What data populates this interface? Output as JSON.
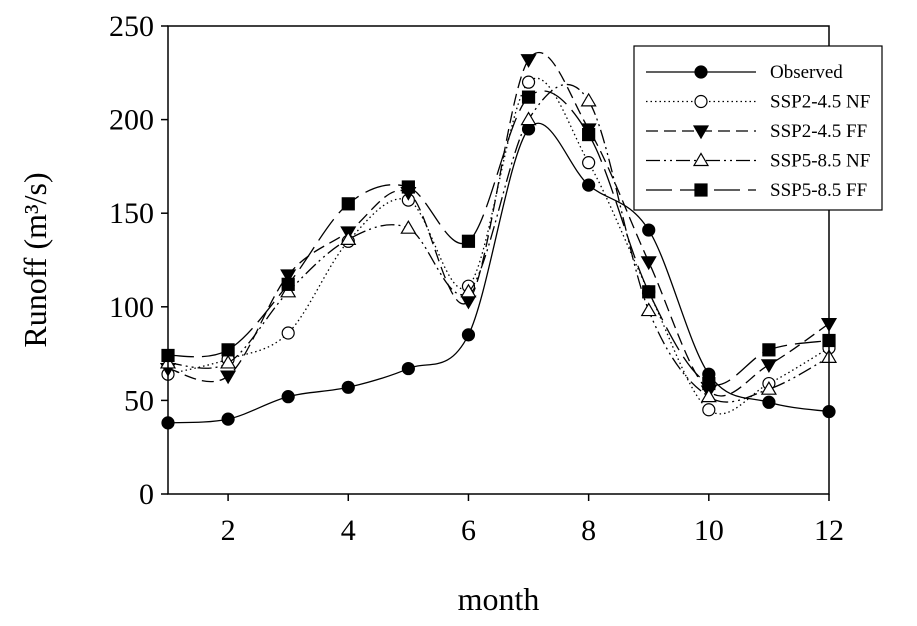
{
  "chart_data": {
    "type": "line",
    "xlabel": "month",
    "ylabel": "Runoff (m³/s)",
    "x": [
      1,
      2,
      3,
      4,
      5,
      6,
      7,
      8,
      9,
      10,
      11,
      12
    ],
    "xlim": [
      1,
      12
    ],
    "ylim": [
      0,
      250
    ],
    "xticks": [
      2,
      4,
      6,
      8,
      10,
      12
    ],
    "yticks": [
      0,
      50,
      100,
      150,
      200,
      250
    ],
    "grid": false,
    "legend_position": "top-right",
    "series": [
      {
        "name": "Observed",
        "marker": "filled-circle",
        "dash": "solid",
        "values": [
          38,
          40,
          52,
          57,
          67,
          85,
          195,
          165,
          141,
          64,
          49,
          44
        ]
      },
      {
        "name": "SSP2-4.5 NF",
        "marker": "open-circle",
        "dash": "dotted",
        "values": [
          64,
          72,
          86,
          135,
          157,
          111,
          220,
          177,
          108,
          45,
          59,
          78
        ]
      },
      {
        "name": "SSP2-4.5 FF",
        "marker": "filled-triangle-down",
        "dash": "dashed",
        "values": [
          67,
          63,
          117,
          140,
          161,
          103,
          232,
          195,
          124,
          55,
          69,
          91
        ]
      },
      {
        "name": "SSP5-8.5 NF",
        "marker": "open-triangle-up",
        "dash": "dash-dot-dot",
        "values": [
          70,
          70,
          108,
          136,
          142,
          108,
          200,
          210,
          98,
          52,
          56,
          73
        ]
      },
      {
        "name": "SSP5-8.5 FF",
        "marker": "filled-square",
        "dash": "long-dash",
        "values": [
          74,
          77,
          112,
          155,
          164,
          135,
          212,
          192,
          108,
          59,
          77,
          82
        ]
      }
    ]
  }
}
